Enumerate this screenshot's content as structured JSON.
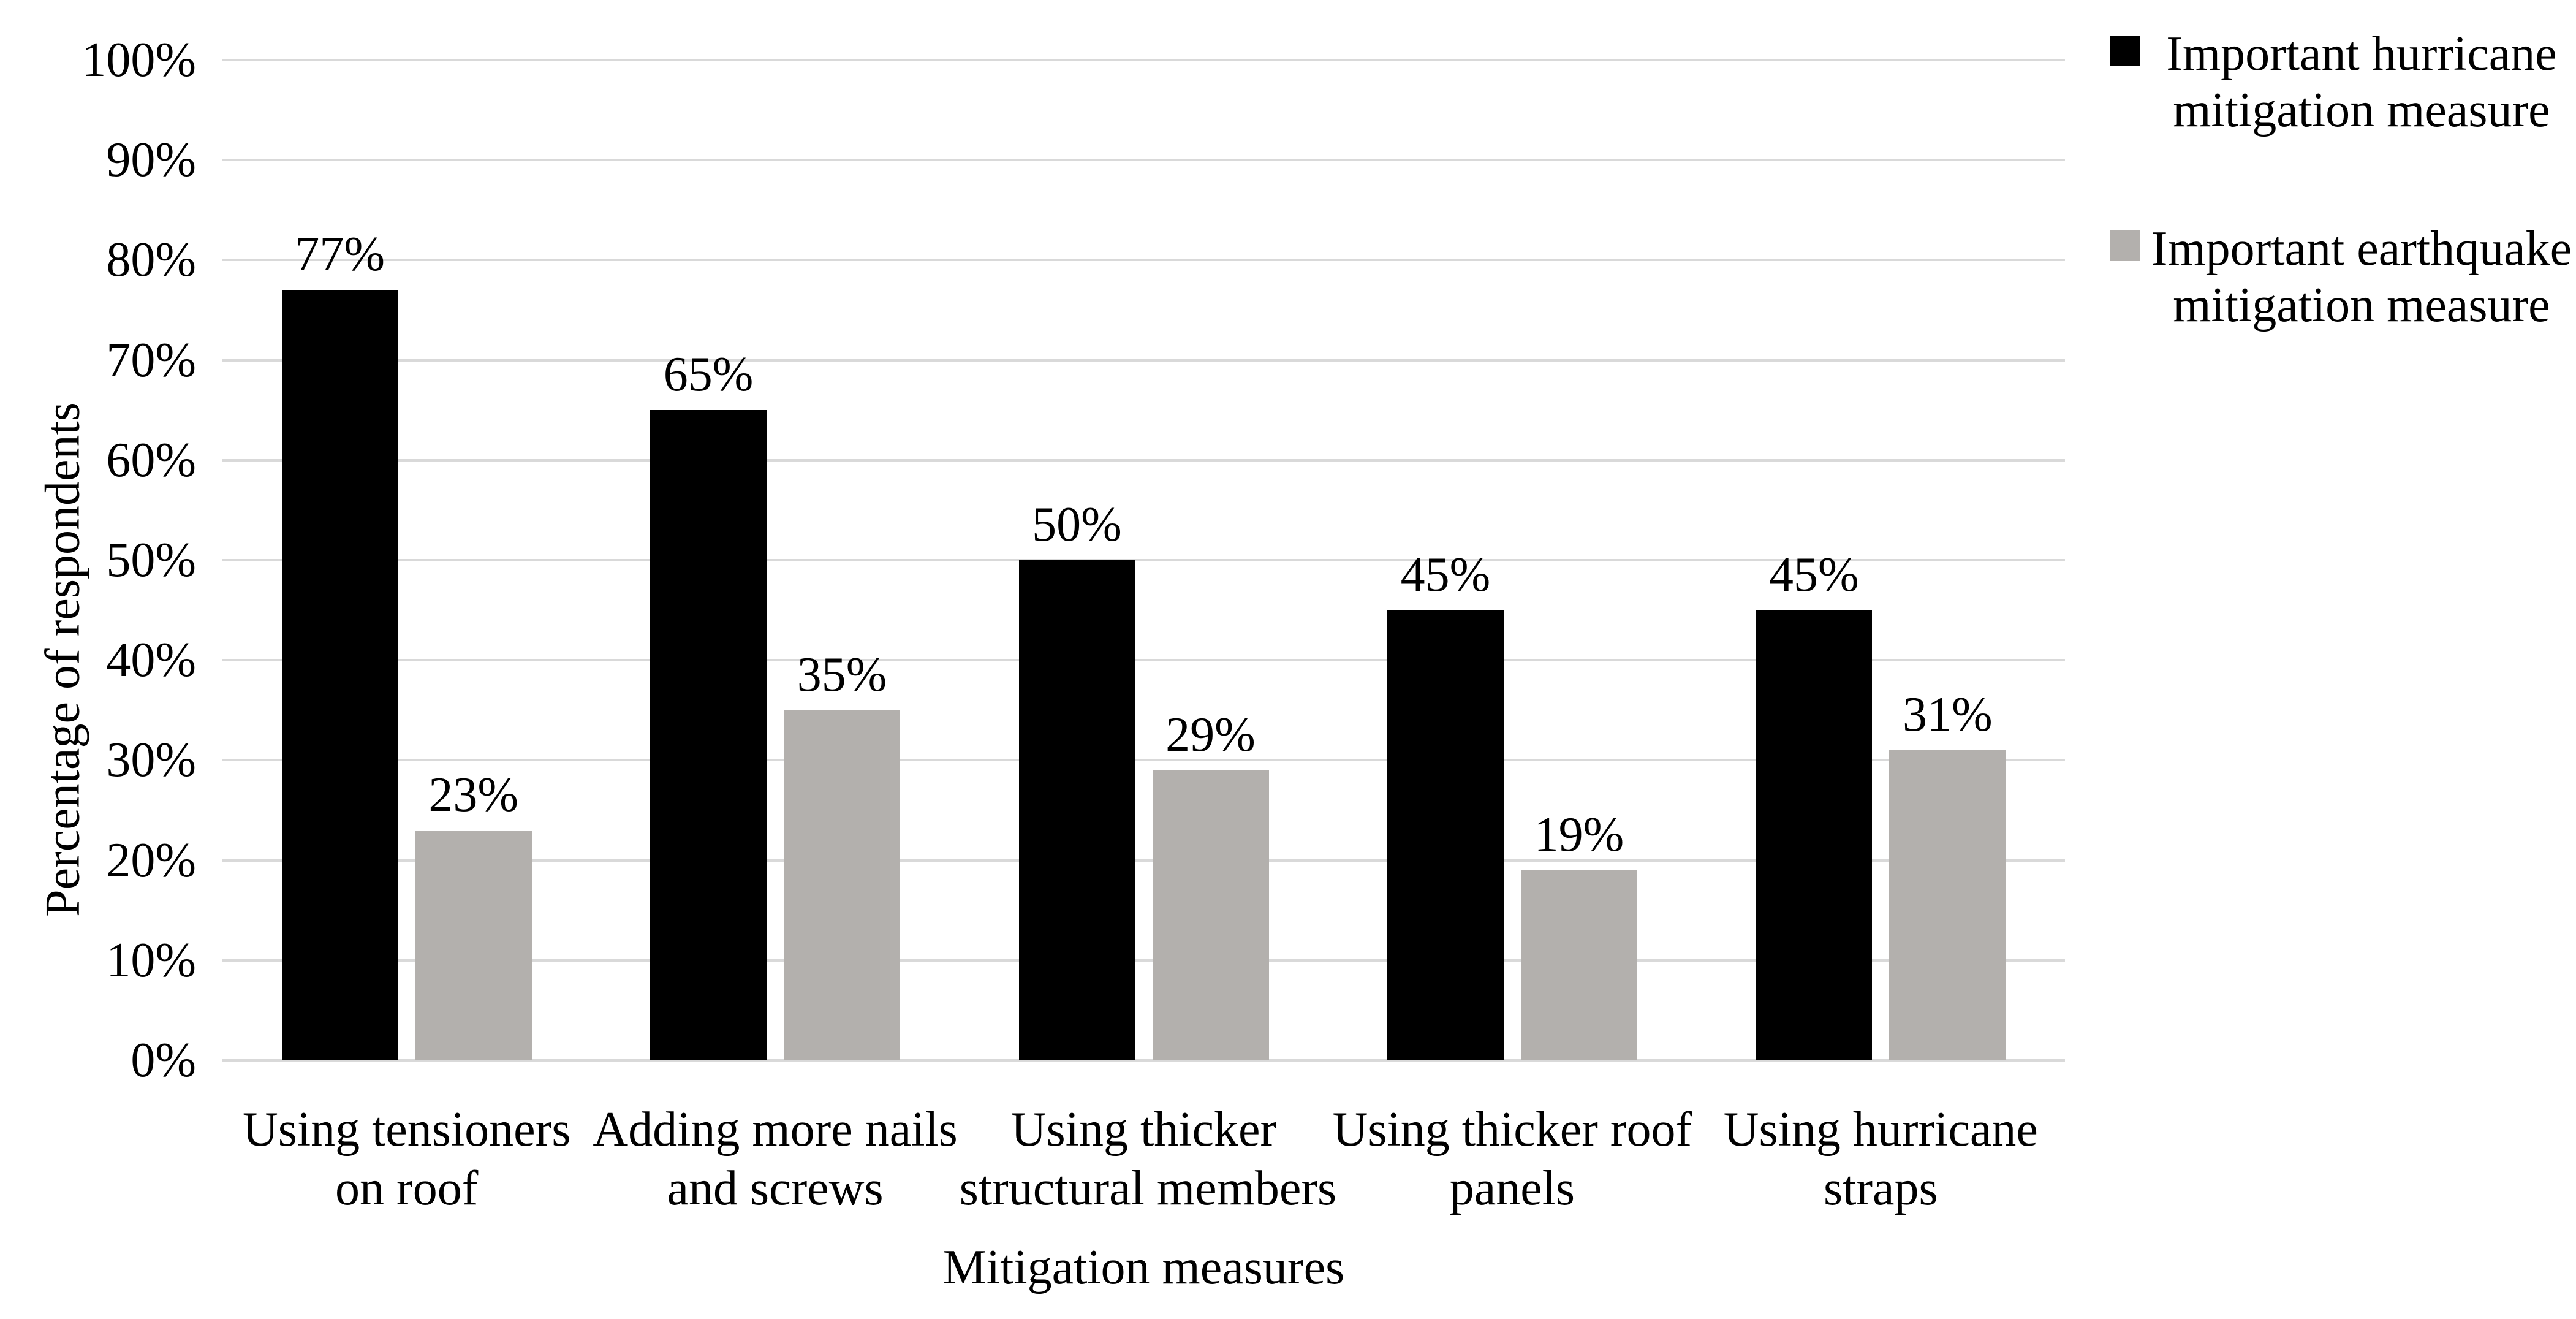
{
  "chart_data": {
    "type": "bar",
    "title": "",
    "categories": [
      "Using tensioners on roof",
      "Adding more nails and screws",
      "Using thicker structural members",
      "Using thicker roof panels",
      "Using hurricane straps"
    ],
    "category_lines": [
      [
        "Using tensioners",
        "on roof"
      ],
      [
        "Adding more nails",
        "and screws"
      ],
      [
        "Using thicker",
        "structural members"
      ],
      [
        "Using thicker roof",
        "panels"
      ],
      [
        "Using hurricane",
        "straps"
      ]
    ],
    "series": [
      {
        "key": "hurricane",
        "name": "Important hurricane mitigation measure",
        "name_lines": [
          "Important hurricane",
          "mitigation measure"
        ],
        "color": "#000000",
        "values": [
          77,
          65,
          50,
          45,
          45
        ],
        "labels": [
          "77%",
          "65%",
          "50%",
          "45%",
          "45%"
        ]
      },
      {
        "key": "earthquake",
        "name": "Important earthquake mitigation measure",
        "name_lines": [
          "Important earthquake",
          "mitigation measure"
        ],
        "color": "#b3b0ad",
        "values": [
          23,
          35,
          29,
          19,
          31
        ],
        "labels": [
          "23%",
          "35%",
          "29%",
          "19%",
          "31%"
        ]
      }
    ],
    "xlabel": "Mitigation measures",
    "ylabel": "Percentage of respondents",
    "ylim": [
      0,
      100
    ],
    "ytick_step": 10,
    "yticks": [
      "0%",
      "10%",
      "20%",
      "30%",
      "40%",
      "50%",
      "60%",
      "70%",
      "80%",
      "90%",
      "100%"
    ],
    "grid": true,
    "grid_color": "#d9d9d9",
    "legend_position": "right-top",
    "data_labels": true,
    "background": "#ffffff"
  }
}
